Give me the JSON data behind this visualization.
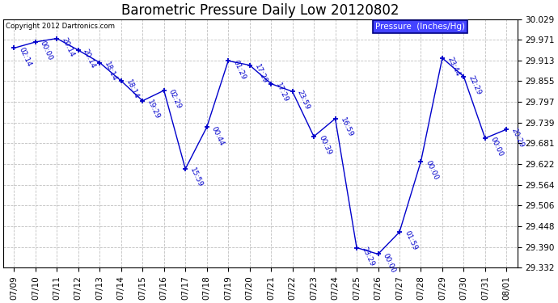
{
  "title": "Barometric Pressure Daily Low 20120802",
  "legend_label": "Pressure  (Inches/Hg)",
  "copyright": "Copyright 2012 Dartronics.com",
  "x_labels": [
    "07/09",
    "07/10",
    "07/11",
    "07/12",
    "07/13",
    "07/14",
    "07/15",
    "07/16",
    "07/17",
    "07/18",
    "07/19",
    "07/20",
    "07/21",
    "07/22",
    "07/23",
    "07/24",
    "07/25",
    "07/26",
    "07/27",
    "07/28",
    "07/29",
    "07/30",
    "07/31",
    "08/01"
  ],
  "y_min": 29.332,
  "y_max": 30.029,
  "y_ticks": [
    29.332,
    29.39,
    29.448,
    29.506,
    29.564,
    29.622,
    29.681,
    29.739,
    29.797,
    29.855,
    29.913,
    29.971,
    30.029
  ],
  "data_x": [
    0,
    1,
    2,
    3,
    4,
    5,
    6,
    7,
    8,
    9,
    10,
    11,
    12,
    13,
    14,
    15,
    16,
    17,
    18,
    19,
    20,
    21,
    22,
    23
  ],
  "data_y": [
    29.948,
    29.965,
    29.975,
    29.942,
    29.907,
    29.856,
    29.8,
    29.829,
    29.609,
    29.726,
    29.912,
    29.9,
    29.848,
    29.826,
    29.7,
    29.75,
    29.388,
    29.37,
    29.432,
    29.63,
    29.92,
    29.868,
    29.695,
    29.72
  ],
  "point_labels": [
    "02:14",
    "00:00",
    "20:14",
    "20:14",
    "18:14",
    "18:14",
    "19:29",
    "02:29",
    "15:59",
    "00:44",
    "01:29",
    "17:29",
    "17:29",
    "23:59",
    "00:39",
    "16:59",
    "23:29",
    "00:00",
    "01:59",
    "00:00",
    "23:44",
    "22:29",
    "00:00",
    "20:29"
  ],
  "line_color": "#0000cc",
  "bg_color": "#ffffff",
  "grid_color": "#c0c0c0",
  "title_fontsize": 12,
  "tick_fontsize": 7.5,
  "annot_fontsize": 6.5,
  "legend_bg": "#4444ff",
  "legend_fg": "#ffffff"
}
